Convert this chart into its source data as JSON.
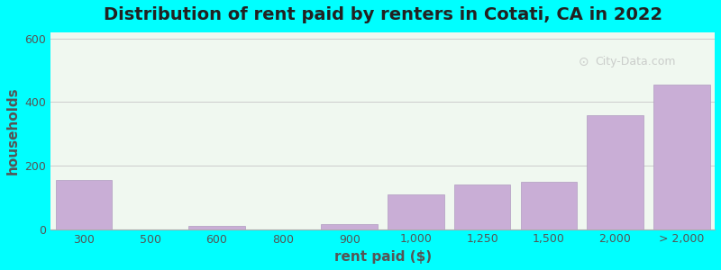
{
  "title": "Distribution of rent paid by renters in Cotati, CA in 2022",
  "xlabel": "rent paid ($)",
  "ylabel": "households",
  "background_color": "#00ffff",
  "plot_bg_color_top": "#f0f8f0",
  "plot_bg_color_bottom": "#e8f5e8",
  "bar_color": "#c9aed6",
  "bar_edgecolor": "#b09cc0",
  "categories": [
    "300",
    "500",
    "600",
    "800",
    "900",
    "1,000",
    "1,250",
    "1,500",
    "2,000",
    "> 2,000"
  ],
  "values": [
    155,
    0,
    10,
    0,
    15,
    110,
    140,
    150,
    360,
    455
  ],
  "ylim": [
    0,
    620
  ],
  "yticks": [
    0,
    200,
    400,
    600
  ],
  "title_fontsize": 14,
  "axis_label_fontsize": 11,
  "tick_fontsize": 9,
  "watermark": "City-Data.com"
}
